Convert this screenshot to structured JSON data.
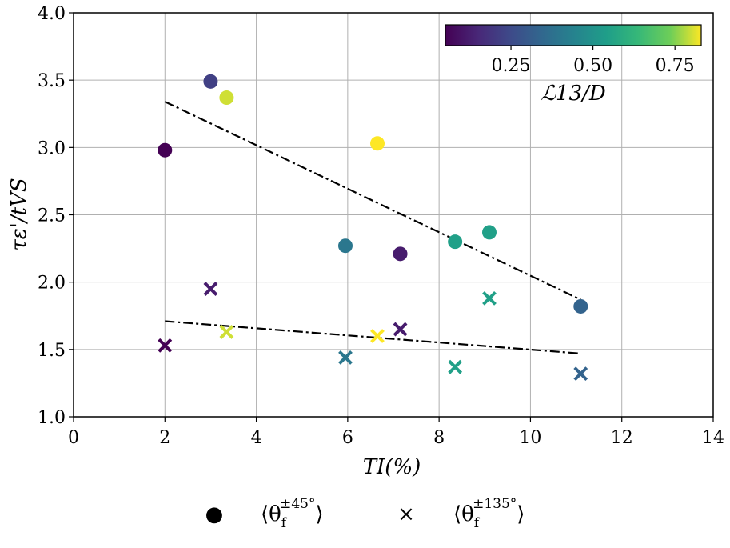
{
  "chart_data": {
    "type": "scatter",
    "xlabel": "TI(%)",
    "ylabel": "τε'/tVS",
    "xlim": [
      0,
      14
    ],
    "ylim": [
      1.0,
      4.0
    ],
    "xticks": [
      "0",
      "2",
      "4",
      "6",
      "8",
      "10",
      "12",
      "14"
    ],
    "yticks": [
      "1.0",
      "1.5",
      "2.0",
      "2.5",
      "3.0",
      "3.5",
      "4.0"
    ],
    "grid": true,
    "colorbar": {
      "label": "ℒ13/D",
      "colormap": "viridis",
      "range": [
        0.05,
        0.83
      ],
      "ticks": [
        "0.25",
        "0.50",
        "0.75"
      ],
      "placement": "top-right"
    },
    "series": [
      {
        "name": "⟨θf±45°⟩",
        "marker": "circle",
        "points": [
          {
            "x": 2.0,
            "y": 2.98,
            "c": 0.05
          },
          {
            "x": 3.0,
            "y": 3.49,
            "c": 0.22
          },
          {
            "x": 3.35,
            "y": 3.37,
            "c": 0.8
          },
          {
            "x": 5.95,
            "y": 2.27,
            "c": 0.4
          },
          {
            "x": 6.65,
            "y": 3.03,
            "c": 0.83
          },
          {
            "x": 7.15,
            "y": 2.21,
            "c": 0.12
          },
          {
            "x": 8.35,
            "y": 2.3,
            "c": 0.55
          },
          {
            "x": 9.1,
            "y": 2.37,
            "c": 0.55
          },
          {
            "x": 11.1,
            "y": 1.82,
            "c": 0.33
          }
        ]
      },
      {
        "name": "⟨θf±135°⟩",
        "marker": "x",
        "points": [
          {
            "x": 2.0,
            "y": 1.53,
            "c": 0.05
          },
          {
            "x": 3.0,
            "y": 1.95,
            "c": 0.12
          },
          {
            "x": 3.35,
            "y": 1.63,
            "c": 0.8
          },
          {
            "x": 5.95,
            "y": 1.44,
            "c": 0.4
          },
          {
            "x": 6.65,
            "y": 1.6,
            "c": 0.83
          },
          {
            "x": 7.15,
            "y": 1.65,
            "c": 0.12
          },
          {
            "x": 8.35,
            "y": 1.37,
            "c": 0.55
          },
          {
            "x": 9.1,
            "y": 1.88,
            "c": 0.55
          },
          {
            "x": 11.1,
            "y": 1.32,
            "c": 0.33
          }
        ]
      }
    ],
    "fit_lines": [
      {
        "name": "fit-circles",
        "x": [
          2.0,
          11.1
        ],
        "y": [
          3.34,
          1.87
        ]
      },
      {
        "name": "fit-crosses",
        "x": [
          2.0,
          11.1
        ],
        "y": [
          1.71,
          1.47
        ]
      }
    ]
  },
  "legend": [
    {
      "symbol": "●",
      "label_main": "⟨θ",
      "label_sub": "f",
      "label_sup": "±45°",
      "label_end": "⟩"
    },
    {
      "symbol": "×",
      "label_main": "⟨θ",
      "label_sub": "f",
      "label_sup": "±135°",
      "label_end": "⟩"
    }
  ]
}
